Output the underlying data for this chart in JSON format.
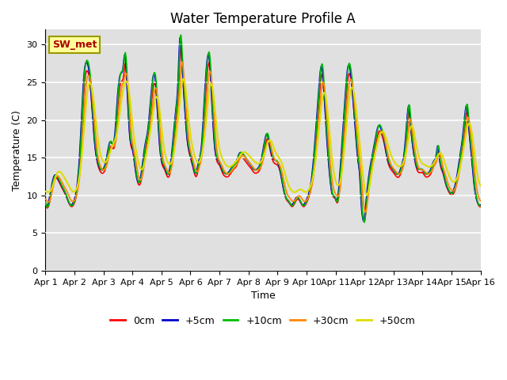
{
  "title": "Water Temperature Profile A",
  "xlabel": "Time",
  "ylabel": "Temperature (C)",
  "ylim": [
    0,
    32
  ],
  "yticks": [
    0,
    5,
    10,
    15,
    20,
    25,
    30
  ],
  "x_tick_labels": [
    "Apr 1",
    "Apr 2",
    "Apr 3",
    "Apr 4",
    "Apr 5",
    "Apr 6",
    "Apr 7",
    "Apr 8",
    "Apr 9",
    "Apr 10",
    "Apr 11",
    "Apr 12",
    "Apr 13",
    "Apr 14",
    "Apr 15",
    "Apr 16"
  ],
  "legend_labels": [
    "0cm",
    "+5cm",
    "+10cm",
    "+30cm",
    "+50cm"
  ],
  "line_colors": [
    "#ff0000",
    "#0000cc",
    "#00bb00",
    "#ff8800",
    "#dddd00"
  ],
  "line_widths": [
    1.2,
    1.2,
    1.2,
    1.2,
    1.5
  ],
  "bg_color": "#e0e0e0",
  "annotation_text": "SW_met",
  "annotation_color": "#aa0000",
  "annotation_bg": "#ffff99",
  "annotation_border": "#999900",
  "title_fontsize": 12,
  "label_fontsize": 9,
  "tick_fontsize": 8
}
